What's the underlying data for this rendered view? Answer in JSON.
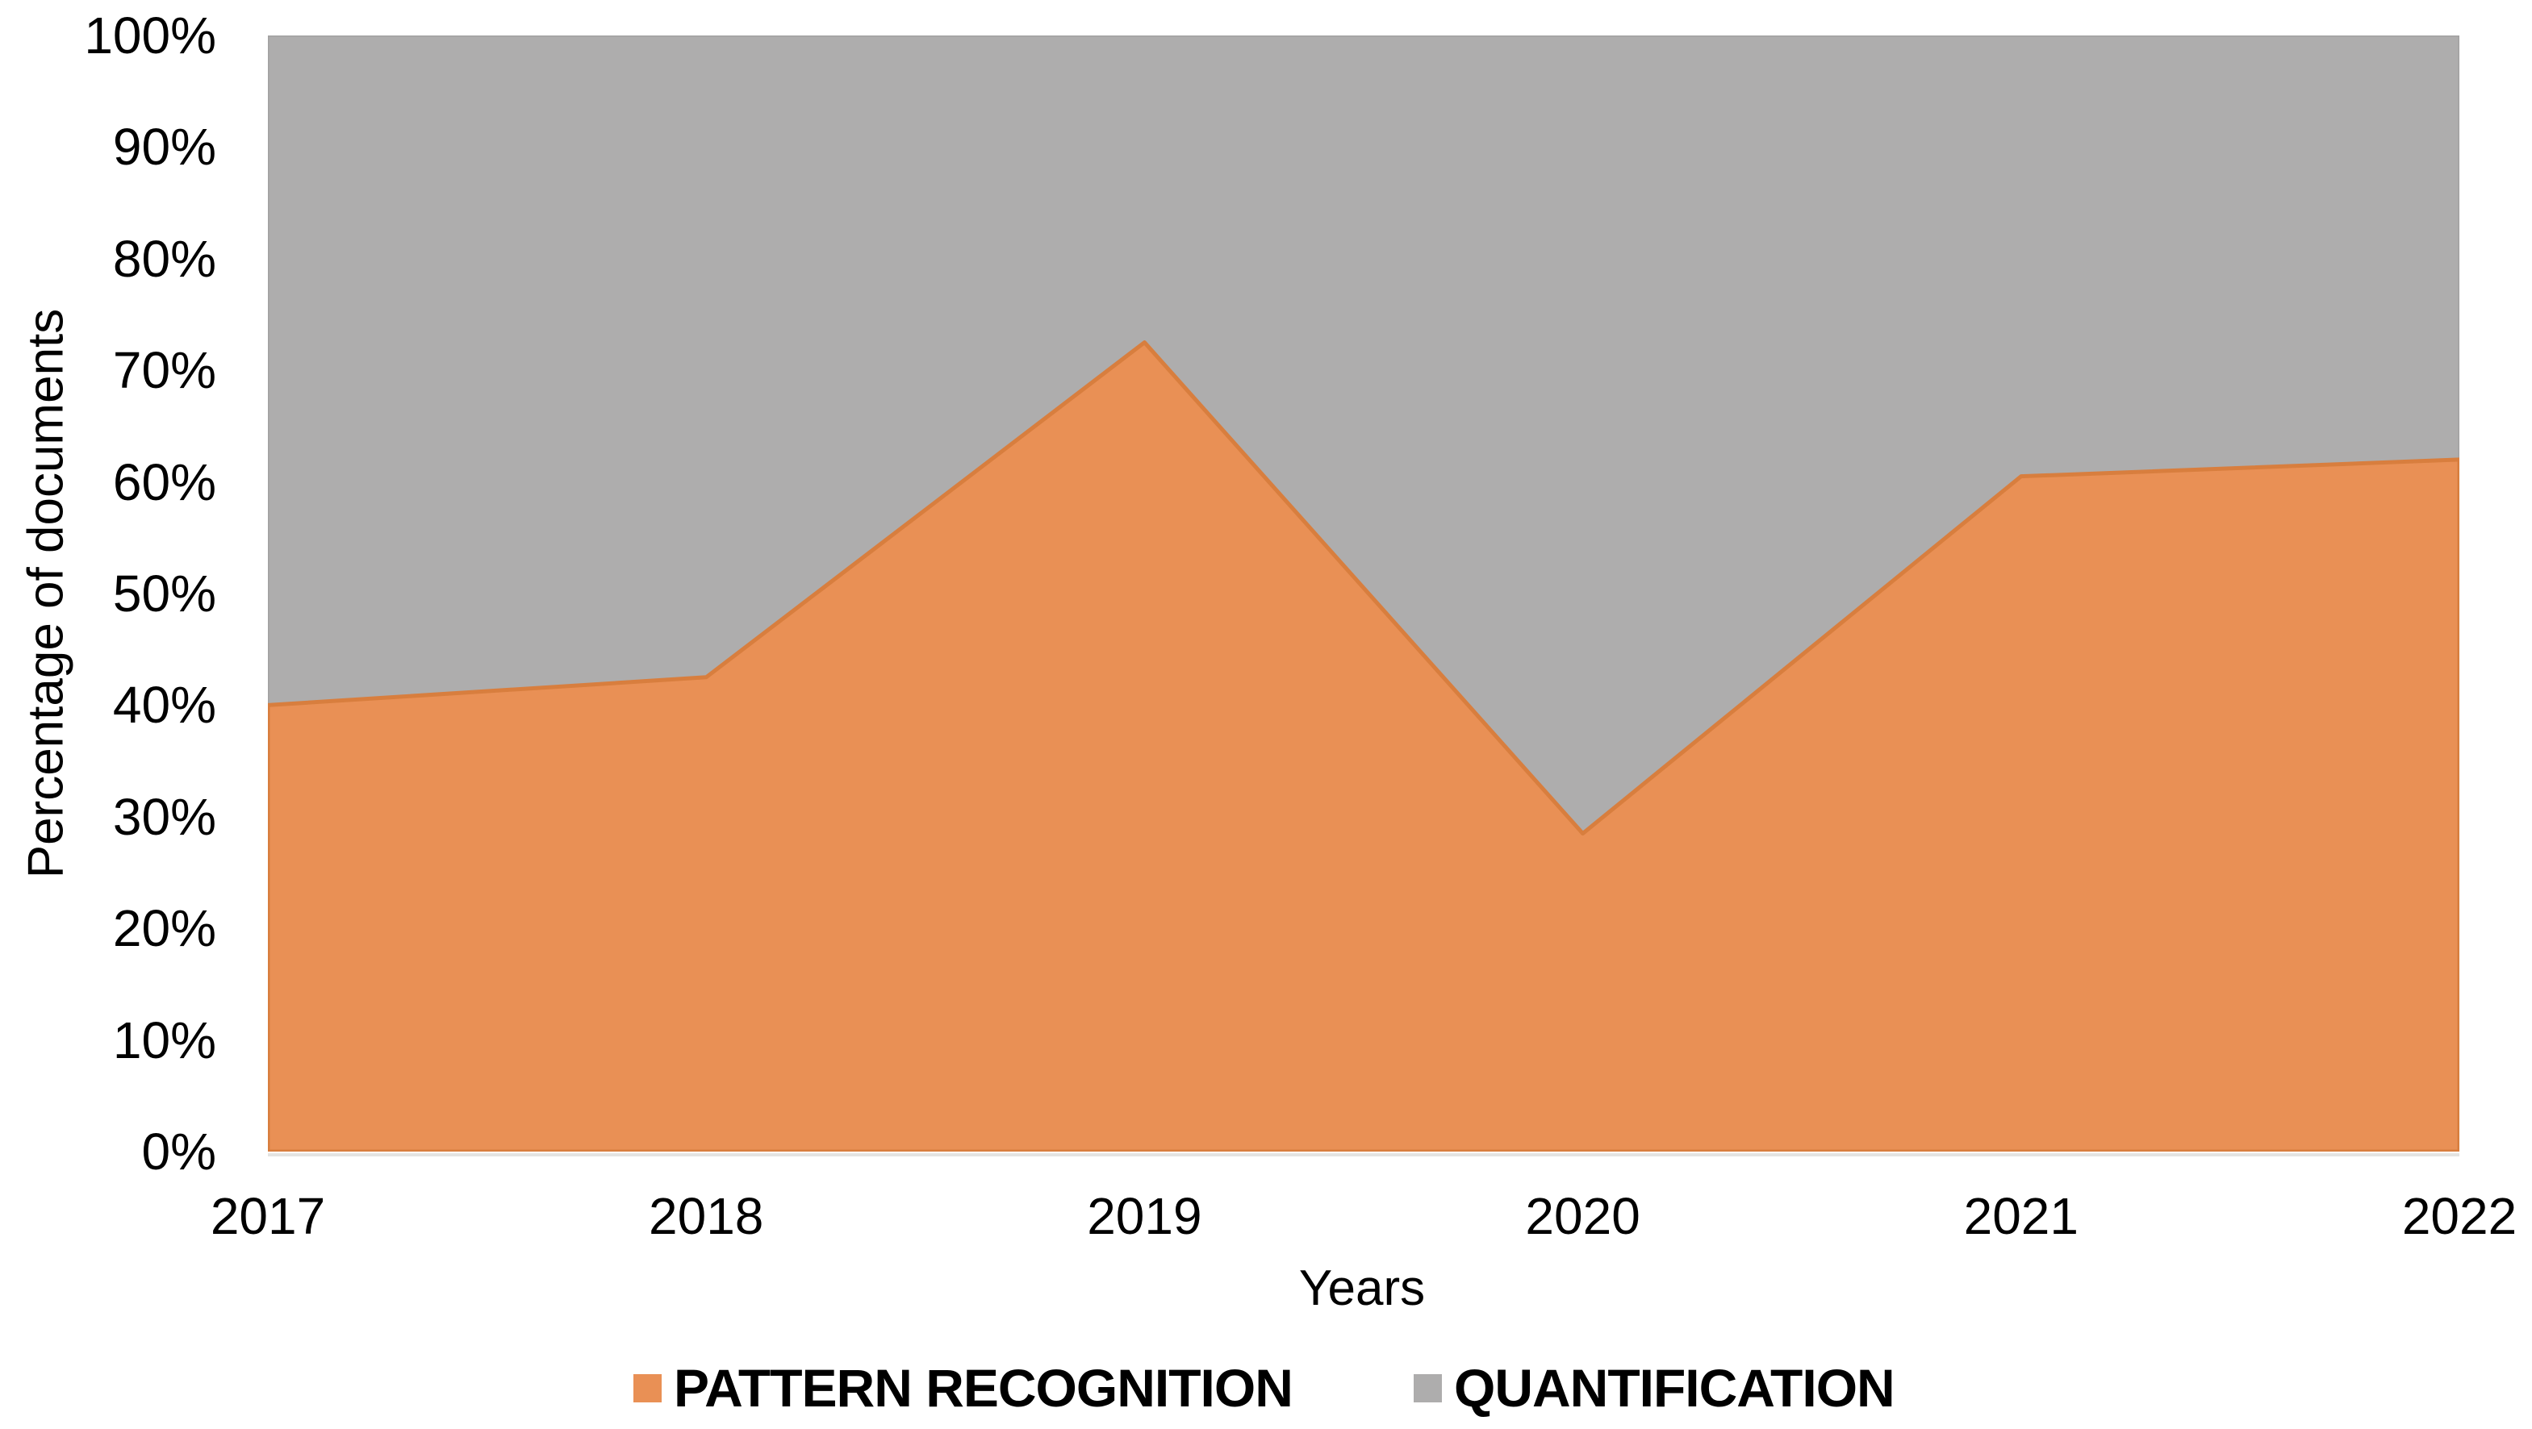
{
  "chart_data": {
    "type": "area",
    "variant": "100%-stacked",
    "x": [
      "2017",
      "2018",
      "2019",
      "2020",
      "2021",
      "2022"
    ],
    "series": [
      {
        "name": "PATTERN RECOGNITION",
        "values": [
          40,
          42.5,
          72.5,
          28.5,
          60.5,
          62
        ],
        "color": "#E99055",
        "edge_color": "#D87E3E"
      },
      {
        "name": "QUANTIFICATION",
        "values": [
          60,
          57.5,
          27.5,
          71.5,
          39.5,
          38
        ],
        "color": "#AEADAD",
        "edge_color": "#A2A1A1"
      }
    ],
    "xlabel": "Years",
    "ylabel": "Percentage of documents",
    "ylim": [
      0,
      100
    ],
    "y_ticks": [
      "0%",
      "10%",
      "20%",
      "30%",
      "40%",
      "50%",
      "60%",
      "70%",
      "80%",
      "90%",
      "100%"
    ],
    "grid": false,
    "legend_position": "bottom",
    "axis_line_color": "#E4E4E2",
    "text_color": "#000000",
    "background_color": "#FFFFFF"
  }
}
